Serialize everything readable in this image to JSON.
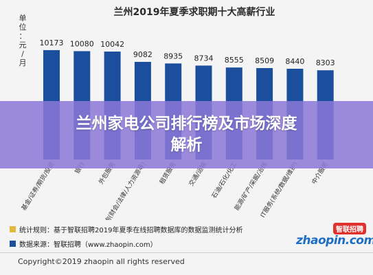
{
  "chart_data": {
    "type": "bar",
    "title": "兰州2019年夏季求职期十大高薪行业",
    "ylabel": [
      "单",
      "位",
      "：",
      "元",
      "/",
      "月"
    ],
    "categories": [
      "基金/证券/期货/投资",
      "银行",
      "外包服务",
      "专业服务/咨询(财会/法律/人力资源等)",
      "租赁服务",
      "交通/运输",
      "石油/石化/化工",
      "能源/矿产/采掘/冶炼",
      "IT服务(系统/数据/维护)",
      "中介服务"
    ],
    "values": [
      10173,
      10080,
      10042,
      9082,
      8935,
      8734,
      8555,
      8509,
      8440,
      8303
    ],
    "value_labels": [
      "10173",
      "10080",
      "10042",
      "9082",
      "8935",
      "8734",
      "8555",
      "8509",
      "8440",
      "8303"
    ],
    "ylim": [
      0,
      11000
    ],
    "grid": false,
    "legend_position": "bottom-left"
  },
  "colors": {
    "bar": "#1b4f9e",
    "legend_rule": "#e2b93b",
    "legend_source": "#1b4f9e",
    "banner": "#8c78d7",
    "logo_red": "#e0312e",
    "logo_blue": "#1d6fc4"
  },
  "banner": {
    "text": "兰州家电公司排行榜及市场深度解析"
  },
  "legend": {
    "rule": "统计规则：基于智联招聘2019年夏季在线招聘数据库的数据监测统计分析",
    "source": "数据来源：智联招聘（www.zhaopin.com）"
  },
  "logo": {
    "badge": "智联招聘",
    "word": "zhaopin.com"
  },
  "footer": {
    "copyright": "Copyright©2019 zhaopin all rights reserved"
  }
}
